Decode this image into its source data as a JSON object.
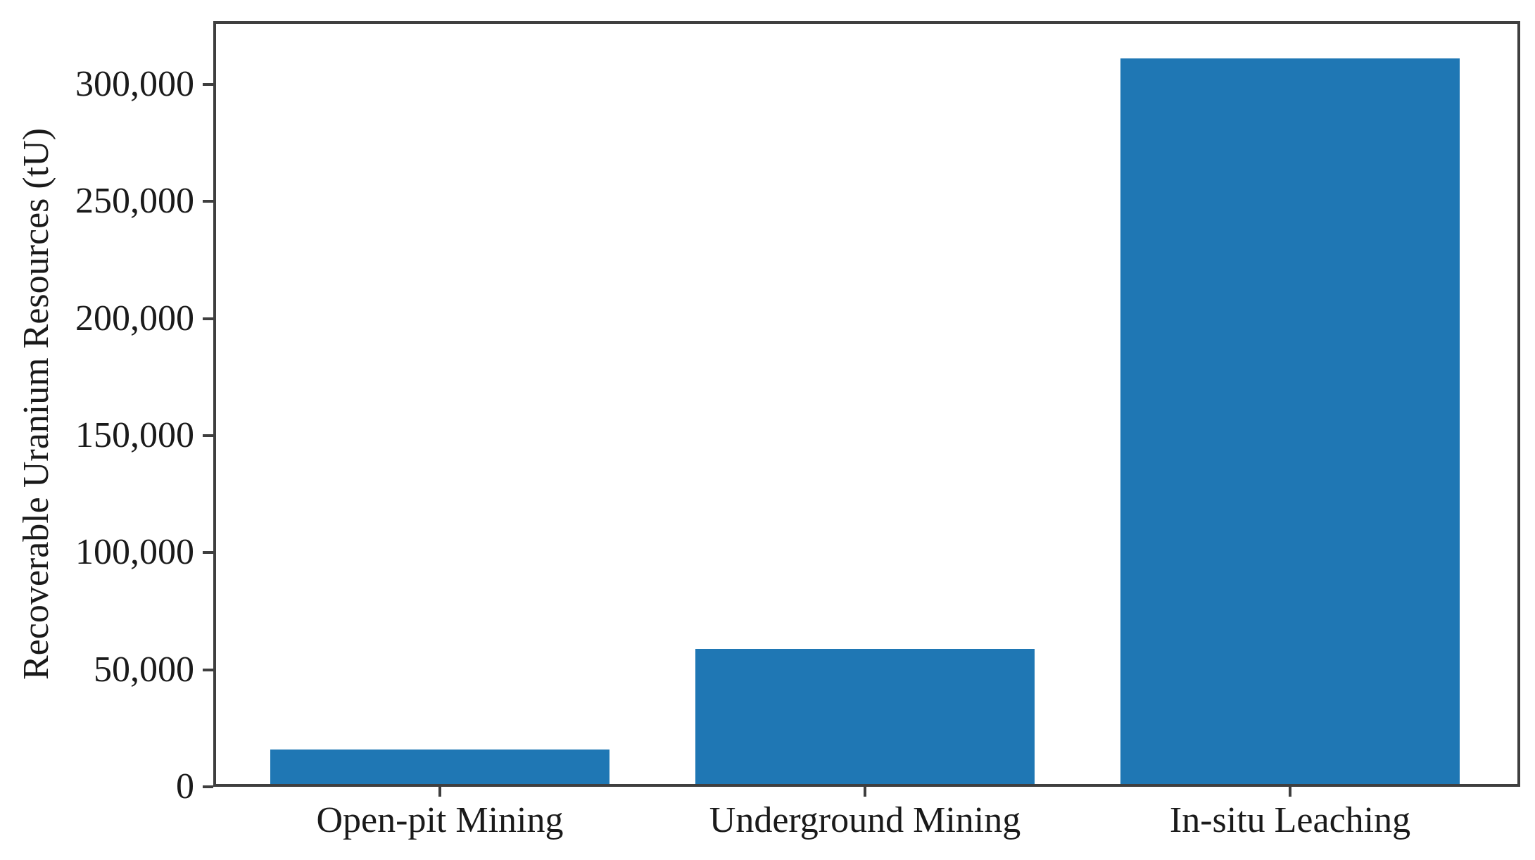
{
  "figure": {
    "background": "#ffffff"
  },
  "chart_data": {
    "type": "bar",
    "title": "",
    "categories": [
      "Open-pit Mining",
      "Underground Mining",
      "In-situ Leaching"
    ],
    "values": [
      16000,
      59000,
      311000
    ],
    "xlabel": "",
    "ylabel": "Recoverable Uranium Resources (tU)",
    "ylim": [
      0,
      327000
    ],
    "yticks": [
      0,
      50000,
      100000,
      150000,
      200000,
      250000,
      300000
    ],
    "ytick_labels": [
      "0",
      "50,000",
      "100,000",
      "150,000",
      "200,000",
      "250,000",
      "300,000"
    ],
    "bar_color": "#1f77b4",
    "axis_color": "#3f3f3f",
    "text_color": "#1a1a1a",
    "grid": false,
    "legend": "none"
  }
}
